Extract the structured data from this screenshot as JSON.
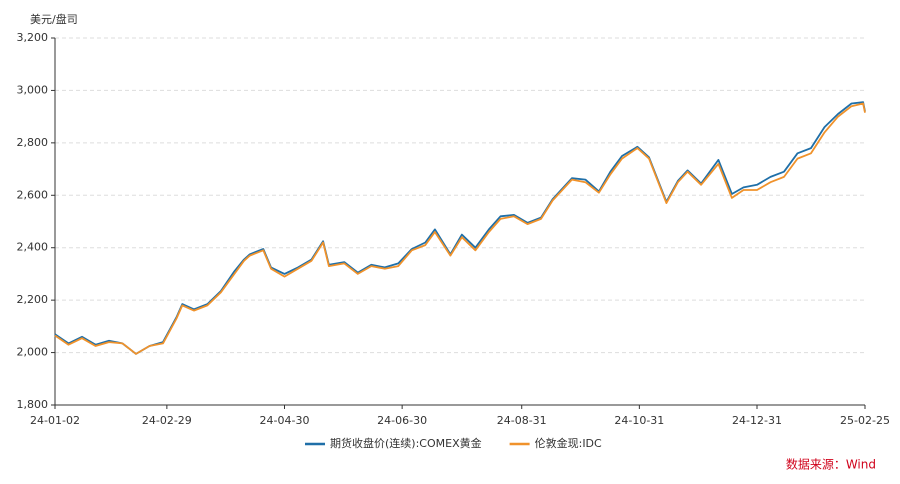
{
  "chart_data": {
    "type": "line",
    "y_label": "美元/盘司",
    "source": "数据来源：Wind",
    "x": [
      "24-01-02",
      "24-01-09",
      "24-01-16",
      "24-01-23",
      "24-01-30",
      "24-02-06",
      "24-02-13",
      "24-02-20",
      "24-02-27",
      "24-03-05",
      "24-03-08",
      "24-03-14",
      "24-03-21",
      "24-03-28",
      "24-04-04",
      "24-04-09",
      "24-04-12",
      "24-04-19",
      "24-04-23",
      "24-04-30",
      "24-05-07",
      "24-05-14",
      "24-05-20",
      "24-05-23",
      "24-05-31",
      "24-06-07",
      "24-06-14",
      "24-06-21",
      "24-06-28",
      "24-07-05",
      "24-07-12",
      "24-07-17",
      "24-07-25",
      "24-07-31",
      "24-08-07",
      "24-08-14",
      "24-08-20",
      "24-08-27",
      "24-09-03",
      "24-09-10",
      "24-09-16",
      "24-09-26",
      "24-10-03",
      "24-10-10",
      "24-10-16",
      "24-10-22",
      "24-10-30",
      "24-11-05",
      "24-11-14",
      "24-11-20",
      "24-11-25",
      "24-12-02",
      "24-12-11",
      "24-12-18",
      "24-12-24",
      "24-12-31",
      "25-01-07",
      "25-01-14",
      "25-01-21",
      "25-01-28",
      "25-02-04",
      "25-02-11",
      "25-02-18",
      "25-02-24",
      "25-02-25"
    ],
    "series": [
      {
        "name": "期货收盘价(连续):COMEX黄金",
        "color": "#1f6fa8",
        "values": [
          2070,
          2035,
          2060,
          2030,
          2045,
          2035,
          1995,
          2025,
          2040,
          2135,
          2185,
          2165,
          2185,
          2235,
          2310,
          2355,
          2375,
          2395,
          2325,
          2300,
          2325,
          2355,
          2425,
          2335,
          2345,
          2305,
          2335,
          2325,
          2340,
          2395,
          2420,
          2470,
          2375,
          2450,
          2400,
          2470,
          2520,
          2525,
          2495,
          2515,
          2585,
          2665,
          2660,
          2615,
          2690,
          2750,
          2785,
          2745,
          2575,
          2655,
          2695,
          2645,
          2735,
          2605,
          2630,
          2640,
          2670,
          2690,
          2760,
          2780,
          2860,
          2910,
          2950,
          2955,
          2920
        ]
      },
      {
        "name": "伦敦金现:IDC",
        "color": "#f0922b",
        "values": [
          2065,
          2030,
          2055,
          2025,
          2040,
          2035,
          1995,
          2025,
          2035,
          2130,
          2180,
          2160,
          2180,
          2230,
          2300,
          2350,
          2370,
          2390,
          2320,
          2290,
          2320,
          2350,
          2420,
          2330,
          2340,
          2300,
          2330,
          2320,
          2330,
          2390,
          2410,
          2460,
          2370,
          2440,
          2390,
          2460,
          2510,
          2520,
          2490,
          2510,
          2580,
          2660,
          2650,
          2610,
          2680,
          2740,
          2780,
          2740,
          2570,
          2650,
          2690,
          2640,
          2720,
          2590,
          2620,
          2620,
          2650,
          2670,
          2740,
          2760,
          2840,
          2900,
          2940,
          2950,
          2915
        ]
      }
    ],
    "xticks": [
      "24-01-02",
      "24-02-29",
      "24-04-30",
      "24-06-30",
      "24-08-31",
      "24-10-31",
      "24-12-31",
      "25-02-25"
    ],
    "ylim": [
      1800,
      3200
    ],
    "yticks": [
      {
        "value": 1800,
        "label": "1,800"
      },
      {
        "value": 2000,
        "label": "2,000"
      },
      {
        "value": 2200,
        "label": "2,200"
      },
      {
        "value": 2400,
        "label": "2,400"
      },
      {
        "value": 2600,
        "label": "2,600"
      },
      {
        "value": 2800,
        "label": "2,800"
      },
      {
        "value": 3000,
        "label": "3,000"
      },
      {
        "value": 3200,
        "label": "3,200"
      }
    ],
    "grid": true
  }
}
